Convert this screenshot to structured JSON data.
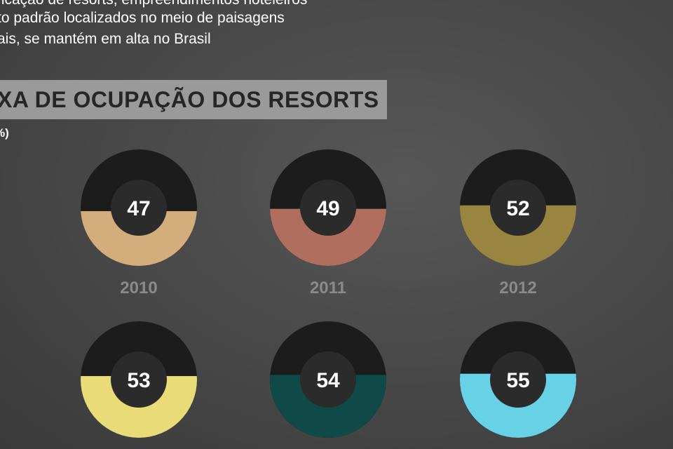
{
  "chart_data": {
    "type": "donut",
    "intro": [
      "ficação de resorts, empreendimentos hoteleiros",
      "to padrão localizados no meio de paisagens",
      "ais, se mantém em alta no Brasil"
    ],
    "title": "XA DE OCUPAÇÃO DOS RESORTS",
    "subtitle": "%)",
    "categories": [
      "2010",
      "2011",
      "2012",
      null,
      null,
      null
    ],
    "values": [
      47,
      49,
      52,
      53,
      54,
      55
    ],
    "colors": [
      "#d4ad7c",
      "#b06e5f",
      "#9a8540",
      "#e9dc78",
      "#0f4a48",
      "#67d2e6"
    ]
  }
}
